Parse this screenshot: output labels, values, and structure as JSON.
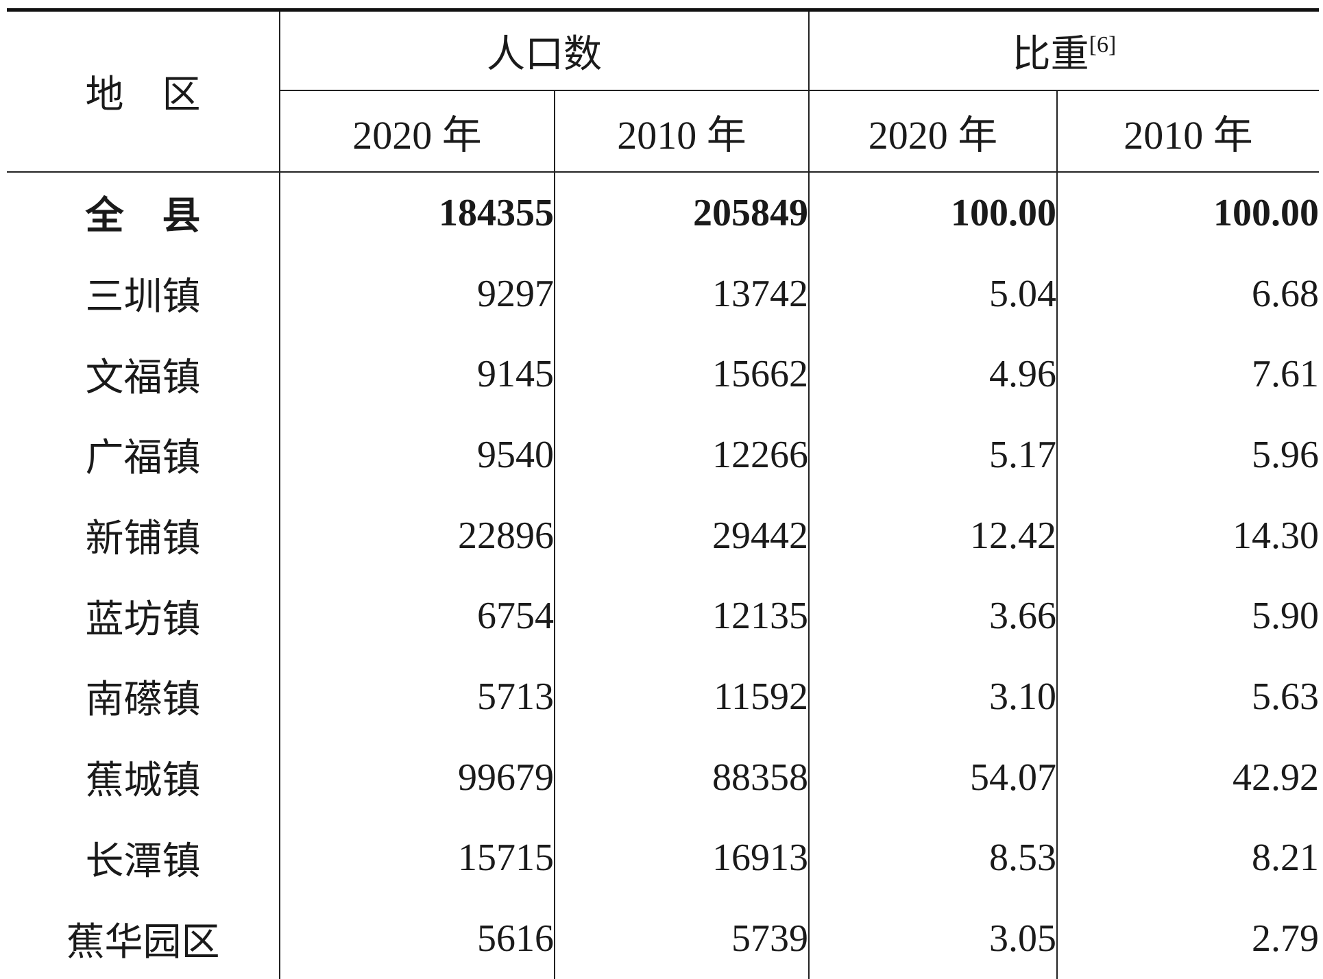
{
  "header": {
    "region": "地　区",
    "population_group": "人口数",
    "share_group": "比重",
    "share_note": "[6]",
    "years": [
      "2020 年",
      "2010 年",
      "2020 年",
      "2010 年"
    ]
  },
  "rows": [
    {
      "region": "全　县",
      "pop_2020": "184355",
      "pop_2010": "205849",
      "share_2020": "100.00",
      "share_2010": "100.00"
    },
    {
      "region": "三圳镇",
      "pop_2020": "9297",
      "pop_2010": "13742",
      "share_2020": "5.04",
      "share_2010": "6.68"
    },
    {
      "region": "文福镇",
      "pop_2020": "9145",
      "pop_2010": "15662",
      "share_2020": "4.96",
      "share_2010": "7.61"
    },
    {
      "region": "广福镇",
      "pop_2020": "9540",
      "pop_2010": "12266",
      "share_2020": "5.17",
      "share_2010": "5.96"
    },
    {
      "region": "新铺镇",
      "pop_2020": "22896",
      "pop_2010": "29442",
      "share_2020": "12.42",
      "share_2010": "14.30"
    },
    {
      "region": "蓝坊镇",
      "pop_2020": "6754",
      "pop_2010": "12135",
      "share_2020": "3.66",
      "share_2010": "5.90"
    },
    {
      "region": "南礤镇",
      "pop_2020": "5713",
      "pop_2010": "11592",
      "share_2020": "3.10",
      "share_2010": "5.63"
    },
    {
      "region": "蕉城镇",
      "pop_2020": "99679",
      "pop_2010": "88358",
      "share_2020": "54.07",
      "share_2010": "42.92"
    },
    {
      "region": "长潭镇",
      "pop_2020": "15715",
      "pop_2010": "16913",
      "share_2020": "8.53",
      "share_2010": "8.21"
    },
    {
      "region": "蕉华园区",
      "pop_2020": "5616",
      "pop_2010": "5739",
      "share_2020": "3.05",
      "share_2010": "2.79"
    }
  ]
}
